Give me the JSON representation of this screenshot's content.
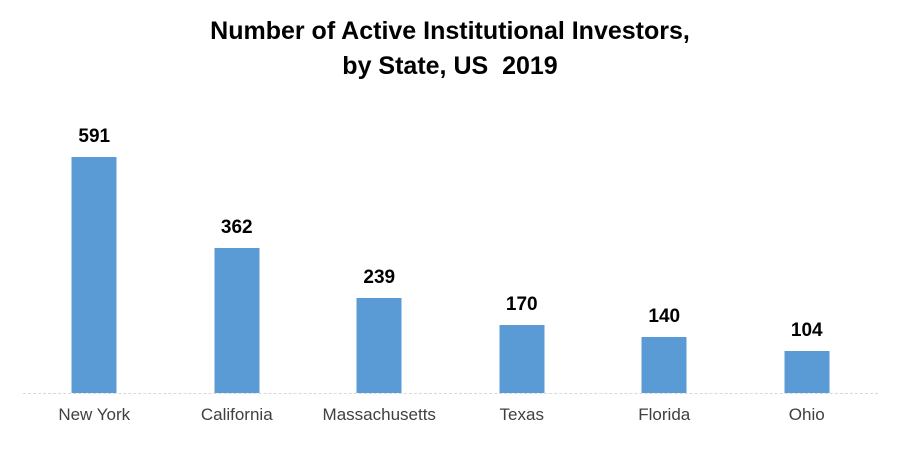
{
  "chart_data": {
    "type": "bar",
    "title": "Number of Active Institutional Investors,\nby State, US  2019",
    "title_lines": [
      "Number of Active Institutional Investors,",
      "by State, US  2019"
    ],
    "categories": [
      "New York",
      "California",
      "Massachusetts",
      "Texas",
      "Florida",
      "Ohio"
    ],
    "values": [
      591,
      362,
      239,
      170,
      140,
      104
    ],
    "xlabel": "",
    "ylabel": "",
    "legend": "none",
    "gridlines": false,
    "data_labels": true,
    "colors": {
      "bar": "#5B9BD5",
      "axis_line": "#D9D9D9",
      "title": "#000000",
      "value_label": "#000000",
      "category_label": "#404040",
      "background": "#FFFFFF"
    }
  }
}
